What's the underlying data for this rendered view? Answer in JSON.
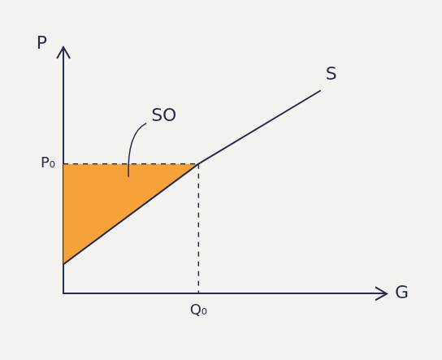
{
  "chart_data": {
    "type": "line",
    "xlabel": "G",
    "ylabel": "P",
    "xlim": [
      0,
      10
    ],
    "ylim": [
      0,
      10
    ],
    "xticks": [
      {
        "value": 4.2,
        "label": "Q₀"
      }
    ],
    "yticks": [
      {
        "value": 5.3,
        "label": "P₀"
      }
    ],
    "grid": false,
    "x": [
      0,
      4.2,
      8.0
    ],
    "series": [
      {
        "name": "S",
        "color": "#262a4f",
        "values": [
          1.2,
          5.3,
          8.3
        ]
      }
    ],
    "area": {
      "label": "SO",
      "color": "#f7a13a",
      "x": [
        0,
        4.2
      ],
      "top": 5.3,
      "bottom": "S"
    }
  }
}
